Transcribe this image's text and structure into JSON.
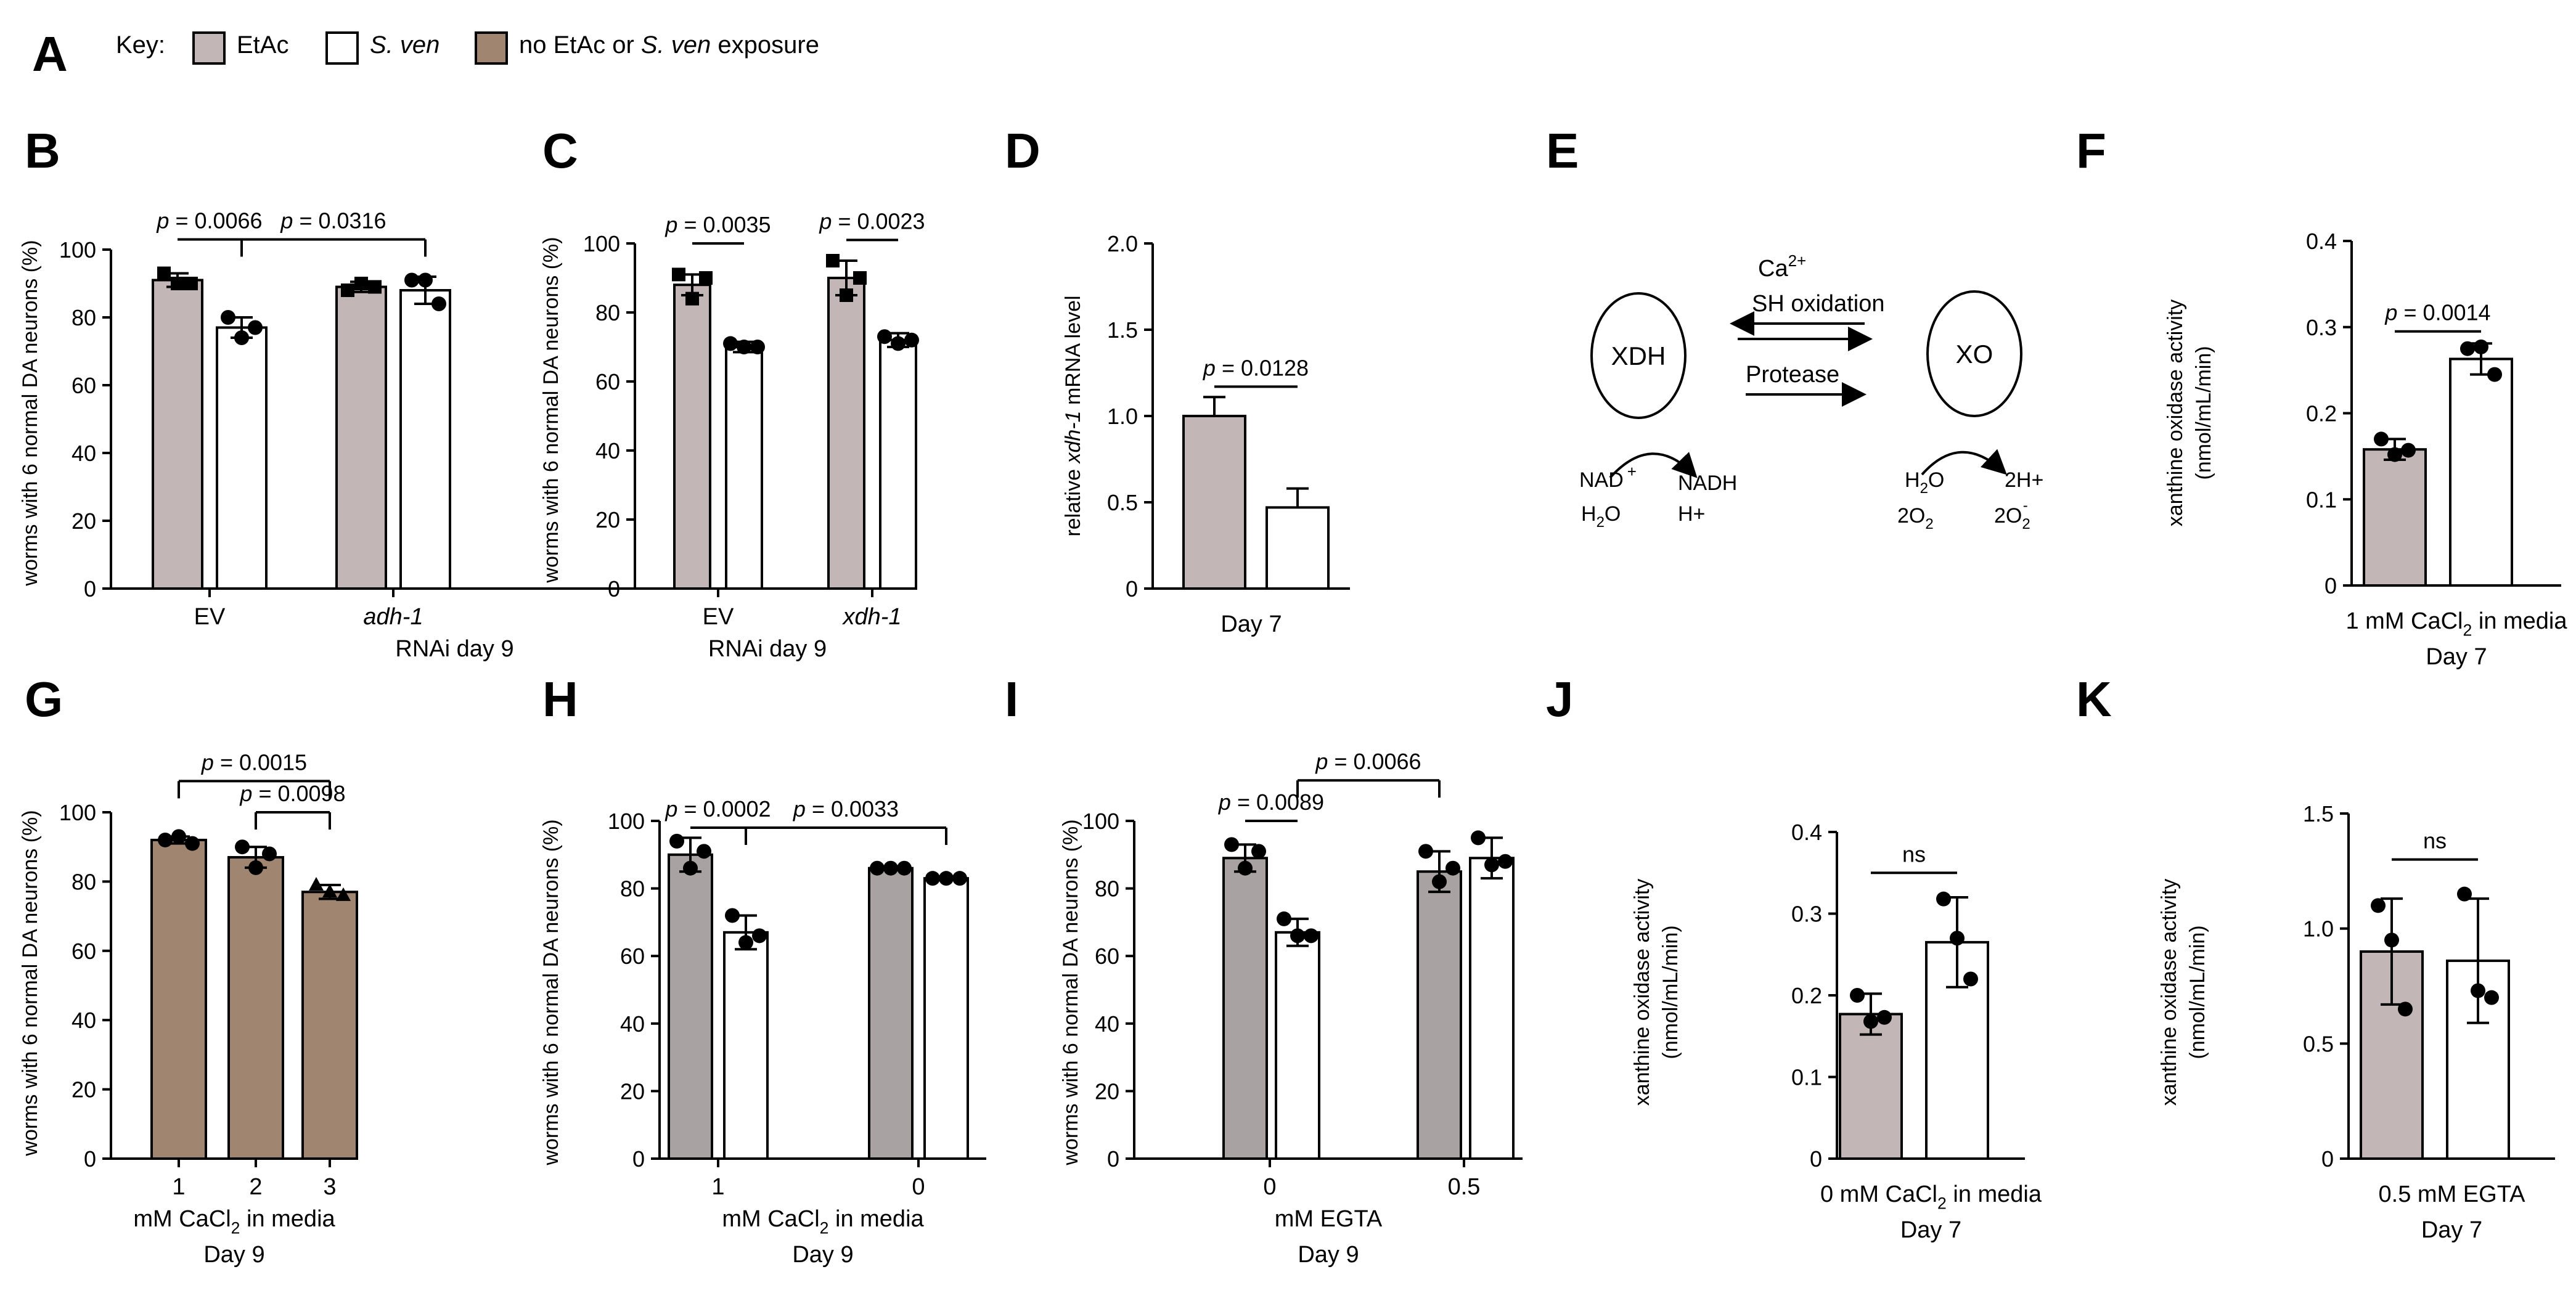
{
  "colors": {
    "etac": "#c3b6b6",
    "sven": "#ffffff",
    "none": "#a08571",
    "h_etac": "#a9a2a2"
  },
  "key": {
    "letter": "A",
    "label": "Key:",
    "items": [
      {
        "label": "EtAc",
        "italic": false,
        "color": "#c3b6b6"
      },
      {
        "label": "S. ven",
        "italic": true,
        "color": "#ffffff"
      },
      {
        "label_parts": [
          "no EtAc or ",
          "S. ven",
          " exposure"
        ],
        "color": "#a08571"
      }
    ]
  },
  "diagram": {
    "letter": "E",
    "left_node": "XDH",
    "right_node": "XO",
    "top_label_1": "Ca",
    "top_label_1_sup": "2+",
    "top_label_2": "SH oxidation",
    "mid_label": "Protease",
    "left_in_1": "NAD",
    "left_in_1_sup": "+",
    "left_in_2": "H",
    "left_in_2_sub": "2",
    "left_in_2_end": "O",
    "left_out_1": "NADH",
    "left_out_2": "H+",
    "right_in_1": "H",
    "right_in_1_sub": "2",
    "right_in_1_end": "O",
    "right_in_2": "2O",
    "right_in_2_sub": "2",
    "right_out_1": "2H+",
    "right_out_2": "2O",
    "right_out_2_sub": "2",
    "right_out_2_sup": "-"
  },
  "chart_data": [
    {
      "panel": "B",
      "type": "bar",
      "ylabel": "worms with 6 normal DA neurons (%)",
      "ylim": [
        0,
        100
      ],
      "yticks": [
        "0",
        "20",
        "40",
        "60",
        "80",
        "100"
      ],
      "groups": [
        {
          "label": "EV",
          "italic": false
        },
        {
          "label": "adh-1",
          "italic": true
        }
      ],
      "xlabel_lines": [
        [
          "RNAi day 9"
        ]
      ],
      "bars": [
        {
          "group": 0,
          "value": 91,
          "err": 2,
          "color": "etac",
          "points": [
            93,
            90,
            90
          ],
          "marker": "square"
        },
        {
          "group": 0,
          "value": 77,
          "err": 3,
          "color": "sven",
          "points": [
            80,
            74,
            77
          ],
          "marker": "circle"
        },
        {
          "group": 1,
          "value": 89,
          "err": 1.5,
          "color": "etac",
          "points": [
            88,
            90,
            89
          ],
          "marker": "square"
        },
        {
          "group": 1,
          "value": 88,
          "err": 4,
          "color": "sven",
          "points": [
            91,
            91,
            84
          ],
          "marker": "circle"
        }
      ],
      "sig": [
        {
          "text": "p = 0.0066",
          "from": 0,
          "to": 1,
          "level": 103
        },
        {
          "text": "p = 0.0316",
          "from": 1,
          "to": 3,
          "level": 103
        }
      ]
    },
    {
      "panel": "C",
      "type": "bar",
      "ylabel": "worms with 6 normal DA neurons (%)",
      "ylim": [
        0,
        100
      ],
      "yticks": [
        "0",
        "20",
        "40",
        "60",
        "80",
        "100"
      ],
      "groups": [
        {
          "label": "EV",
          "italic": false
        },
        {
          "label": "xdh-1",
          "italic": true
        }
      ],
      "xlabel_lines": [
        [
          "RNAi day 9"
        ]
      ],
      "bars": [
        {
          "group": 0,
          "value": 88,
          "err": 3,
          "color": "etac",
          "points": [
            91,
            84,
            90
          ],
          "marker": "square"
        },
        {
          "group": 0,
          "value": 70,
          "err": 1.5,
          "color": "sven",
          "points": [
            71,
            70,
            70
          ],
          "marker": "circle"
        },
        {
          "group": 1,
          "value": 90,
          "err": 5,
          "color": "etac",
          "points": [
            95,
            85,
            90
          ],
          "marker": "square"
        },
        {
          "group": 1,
          "value": 72,
          "err": 2,
          "color": "sven",
          "points": [
            73,
            71,
            72
          ],
          "marker": "circle"
        }
      ],
      "sig": [
        {
          "text": "p = 0.0035",
          "from": 0,
          "to": 1,
          "level": 100
        },
        {
          "text": "p = 0.0023",
          "from": 2,
          "to": 3,
          "level": 101
        }
      ]
    },
    {
      "panel": "D",
      "type": "bar",
      "ylabel_parts": [
        "relative ",
        "xdh-1",
        " mRNA level"
      ],
      "ylim": [
        0,
        2.0
      ],
      "yticks": [
        "0",
        "0.5",
        "1.0",
        "1.5",
        "2.0"
      ],
      "groups": [
        {
          "label": "",
          "italic": false
        }
      ],
      "xlabel_lines": [
        [
          "Day 7"
        ]
      ],
      "bars": [
        {
          "group": 0,
          "value": 1.0,
          "err": 0.11,
          "color": "etac",
          "points": [],
          "err_up_only": true
        },
        {
          "group": 0,
          "value": 0.47,
          "err": 0.11,
          "color": "sven",
          "points": [],
          "err_up_only": true
        }
      ],
      "sig": [
        {
          "text": "p = 0.0128",
          "from": 0,
          "to": 1,
          "level": 1.17
        }
      ]
    },
    {
      "panel": "F",
      "type": "bar",
      "ylabel": "xanthine oxidase activity",
      "ylabel2": "(nmol/mL/min)",
      "ylim": [
        0,
        0.4
      ],
      "yticks": [
        "0",
        "0.1",
        "0.2",
        "0.3",
        "0.4"
      ],
      "groups": [
        {
          "label": "",
          "italic": false
        }
      ],
      "xlabel_lines": [
        [
          "1 mM CaCl",
          "2",
          " in media"
        ],
        [
          "Day 7"
        ]
      ],
      "bars": [
        {
          "group": 0,
          "value": 0.158,
          "err": 0.012,
          "color": "etac",
          "points": [
            0.17,
            0.152,
            0.157
          ],
          "marker": "circle"
        },
        {
          "group": 0,
          "value": 0.263,
          "err": 0.018,
          "color": "sven",
          "points": [
            0.275,
            0.277,
            0.245
          ],
          "marker": "circle"
        }
      ],
      "sig": [
        {
          "text": "p = 0.0014",
          "from": 0,
          "to": 1,
          "level": 0.295
        }
      ]
    },
    {
      "panel": "G",
      "type": "bar",
      "ylabel": "worms with 6 normal DA neurons (%)",
      "ylim": [
        0,
        100
      ],
      "yticks": [
        "0",
        "20",
        "40",
        "60",
        "80",
        "100"
      ],
      "groups": [
        {
          "label": "1"
        },
        {
          "label": "2"
        },
        {
          "label": "3"
        }
      ],
      "xlabel_lines": [
        [
          "mM CaCl",
          "2",
          " in media"
        ],
        [
          "Day 9"
        ]
      ],
      "bars": [
        {
          "group": 0,
          "value": 92,
          "err": 1,
          "color": "none",
          "points": [
            92,
            93,
            91
          ],
          "marker": "circle"
        },
        {
          "group": 1,
          "value": 87,
          "err": 3,
          "color": "none",
          "points": [
            90,
            84,
            88
          ],
          "marker": "circle"
        },
        {
          "group": 2,
          "value": 77,
          "err": 2,
          "color": "none",
          "points": [
            79,
            77,
            76
          ],
          "marker": "triangle"
        }
      ],
      "sig": [
        {
          "text": "p = 0.0015",
          "from": 0,
          "to": 2,
          "level": 109
        },
        {
          "text": "p = 0.0098",
          "from": 1,
          "to": 2,
          "level": 100
        }
      ]
    },
    {
      "panel": "H",
      "type": "bar",
      "ylabel": "worms with 6 normal DA neurons (%)",
      "ylim": [
        0,
        100
      ],
      "yticks": [
        "0",
        "20",
        "40",
        "60",
        "80",
        "100"
      ],
      "groups": [
        {
          "label": "1"
        },
        {
          "label": "0"
        }
      ],
      "xlabel_lines": [
        [
          "mM CaCl",
          "2",
          " in media"
        ],
        [
          "Day 9"
        ]
      ],
      "bars": [
        {
          "group": 0,
          "value": 90,
          "err": 5,
          "color": "h_etac",
          "points": [
            94,
            86,
            91
          ],
          "marker": "circle"
        },
        {
          "group": 0,
          "value": 67,
          "err": 5,
          "color": "sven",
          "points": [
            72,
            64,
            66
          ],
          "marker": "circle"
        },
        {
          "group": 1,
          "value": 86,
          "err": 0.5,
          "color": "h_etac",
          "points": [
            86,
            86,
            86
          ],
          "marker": "circle"
        },
        {
          "group": 1,
          "value": 83,
          "err": 0.5,
          "color": "sven",
          "points": [
            83,
            83,
            83
          ],
          "marker": "circle"
        }
      ],
      "sig": [
        {
          "text": "p = 0.0002",
          "from": 0,
          "to": 1,
          "level": 98
        },
        {
          "text": "p = 0.0033",
          "from": 1,
          "to": 3,
          "level": 98
        }
      ]
    },
    {
      "panel": "I",
      "type": "bar",
      "ylabel": "worms with 6 normal DA neurons (%)",
      "ylim": [
        0,
        100
      ],
      "yticks": [
        "0",
        "20",
        "40",
        "60",
        "80",
        "100"
      ],
      "groups": [
        {
          "label": "0"
        },
        {
          "label": "0.5"
        }
      ],
      "xlabel_lines": [
        [
          "mM EGTA"
        ],
        [
          "Day 9"
        ]
      ],
      "bars": [
        {
          "group": 0,
          "value": 89,
          "err": 4,
          "color": "h_etac",
          "points": [
            93,
            86,
            91
          ],
          "marker": "circle"
        },
        {
          "group": 0,
          "value": 67,
          "err": 4,
          "color": "sven",
          "points": [
            71,
            66,
            66
          ],
          "marker": "circle"
        },
        {
          "group": 1,
          "value": 85,
          "err": 6,
          "color": "h_etac",
          "points": [
            91,
            82,
            86
          ],
          "marker": "circle"
        },
        {
          "group": 1,
          "value": 89,
          "err": 6,
          "color": "sven",
          "points": [
            95,
            87,
            88
          ],
          "marker": "circle"
        }
      ],
      "sig": [
        {
          "text": "p = 0.0089",
          "from": 0,
          "to": 1,
          "level": 100
        },
        {
          "text": "p = 0.0066",
          "from": 1,
          "to": 2,
          "level": 112
        }
      ]
    },
    {
      "panel": "J",
      "type": "bar",
      "ylabel": "xanthine oxidase activity",
      "ylabel2": "(nmol/mL/min)",
      "ylim": [
        0,
        0.4
      ],
      "yticks": [
        "0",
        "0.1",
        "0.2",
        "0.3",
        "0.4"
      ],
      "groups": [
        {
          "label": ""
        }
      ],
      "xlabel_lines": [
        [
          "0 mM CaCl",
          "2",
          " in media"
        ],
        [
          "Day 7"
        ]
      ],
      "bars": [
        {
          "group": 0,
          "value": 0.177,
          "err": 0.025,
          "color": "etac",
          "points": [
            0.2,
            0.168,
            0.173
          ],
          "marker": "circle"
        },
        {
          "group": 0,
          "value": 0.265,
          "err": 0.055,
          "color": "sven",
          "points": [
            0.318,
            0.27,
            0.22
          ],
          "marker": "circle"
        }
      ],
      "sig": [
        {
          "text": "ns",
          "from": 0,
          "to": 1,
          "level": 0.35
        }
      ]
    },
    {
      "panel": "K",
      "type": "bar",
      "ylabel": "xanthine oxidase activity",
      "ylabel2": "(nmol/mL/min)",
      "ylim": [
        0,
        1.5
      ],
      "yticks": [
        "0",
        "0.5",
        "1.0",
        "1.5"
      ],
      "groups": [
        {
          "label": ""
        }
      ],
      "xlabel_lines": [
        [
          "0.5 mM EGTA"
        ],
        [
          "Day 7"
        ]
      ],
      "bars": [
        {
          "group": 0,
          "value": 0.9,
          "err": 0.23,
          "color": "etac",
          "points": [
            1.1,
            0.95,
            0.65
          ],
          "marker": "circle"
        },
        {
          "group": 0,
          "value": 0.86,
          "err": 0.27,
          "color": "sven",
          "points": [
            1.15,
            0.73,
            0.7
          ],
          "marker": "circle"
        }
      ],
      "sig": [
        {
          "text": "ns",
          "from": 0,
          "to": 1,
          "level": 1.3
        }
      ]
    }
  ]
}
